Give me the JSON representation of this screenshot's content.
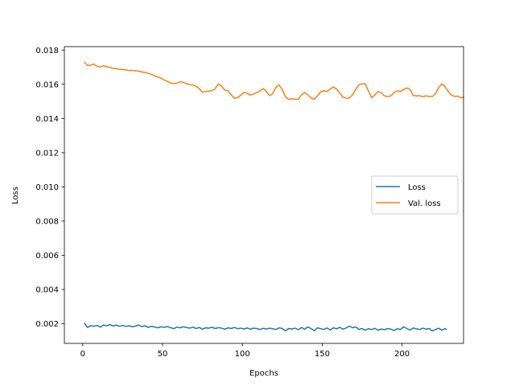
{
  "chart_data": {
    "type": "line",
    "title": "",
    "xlabel": "Epochs",
    "ylabel": "Loss",
    "xlim": [
      -11.5,
      238.5
    ],
    "ylim": [
      0.00085,
      0.0182
    ],
    "xticks": [
      0,
      50,
      100,
      150,
      200
    ],
    "xtick_labels": [
      "0",
      "50",
      "100",
      "150",
      "200"
    ],
    "yticks": [
      0.002,
      0.004,
      0.006,
      0.008,
      0.01,
      0.012,
      0.014,
      0.016,
      0.018
    ],
    "ytick_labels": [
      "0.002",
      "0.004",
      "0.006",
      "0.008",
      "0.010",
      "0.012",
      "0.014",
      "0.016",
      "0.018"
    ],
    "grid": false,
    "legend_position": "center-right",
    "series": [
      {
        "name": "Loss",
        "color": "#1f77b4",
        "points": [
          [
            1,
            0.00205
          ],
          [
            3,
            0.00178
          ],
          [
            5,
            0.00188
          ],
          [
            7,
            0.00185
          ],
          [
            9,
            0.0019
          ],
          [
            11,
            0.0018
          ],
          [
            13,
            0.00192
          ],
          [
            15,
            0.00188
          ],
          [
            17,
            0.00195
          ],
          [
            19,
            0.00186
          ],
          [
            21,
            0.00192
          ],
          [
            23,
            0.00185
          ],
          [
            25,
            0.0019
          ],
          [
            27,
            0.00184
          ],
          [
            29,
            0.00188
          ],
          [
            31,
            0.00182
          ],
          [
            33,
            0.00186
          ],
          [
            35,
            0.00192
          ],
          [
            37,
            0.00183
          ],
          [
            39,
            0.00188
          ],
          [
            41,
            0.00178
          ],
          [
            43,
            0.00185
          ],
          [
            45,
            0.00181
          ],
          [
            47,
            0.00176
          ],
          [
            49,
            0.00182
          ],
          [
            51,
            0.00179
          ],
          [
            53,
            0.00183
          ],
          [
            55,
            0.00177
          ],
          [
            57,
            0.00171
          ],
          [
            59,
            0.0018
          ],
          [
            61,
            0.00176
          ],
          [
            63,
            0.00182
          ],
          [
            65,
            0.00178
          ],
          [
            67,
            0.00174
          ],
          [
            69,
            0.0018
          ],
          [
            71,
            0.00172
          ],
          [
            73,
            0.00178
          ],
          [
            75,
            0.00168
          ],
          [
            77,
            0.00176
          ],
          [
            79,
            0.00174
          ],
          [
            81,
            0.00179
          ],
          [
            83,
            0.00172
          ],
          [
            85,
            0.00177
          ],
          [
            87,
            0.00174
          ],
          [
            89,
            0.00168
          ],
          [
            91,
            0.00176
          ],
          [
            93,
            0.00172
          ],
          [
            95,
            0.00178
          ],
          [
            97,
            0.00171
          ],
          [
            99,
            0.00174
          ],
          [
            101,
            0.00169
          ],
          [
            103,
            0.00175
          ],
          [
            105,
            0.00168
          ],
          [
            107,
            0.00174
          ],
          [
            109,
            0.00172
          ],
          [
            111,
            0.00166
          ],
          [
            113,
            0.00173
          ],
          [
            115,
            0.00169
          ],
          [
            117,
            0.00174
          ],
          [
            119,
            0.00171
          ],
          [
            121,
            0.00166
          ],
          [
            123,
            0.00176
          ],
          [
            125,
            0.00172
          ],
          [
            127,
            0.00158
          ],
          [
            129,
            0.00172
          ],
          [
            131,
            0.00169
          ],
          [
            133,
            0.00174
          ],
          [
            135,
            0.00165
          ],
          [
            137,
            0.00178
          ],
          [
            139,
            0.00168
          ],
          [
            141,
            0.00181
          ],
          [
            143,
            0.00172
          ],
          [
            145,
            0.00159
          ],
          [
            147,
            0.00176
          ],
          [
            149,
            0.00171
          ],
          [
            151,
            0.00166
          ],
          [
            153,
            0.00175
          ],
          [
            155,
            0.00163
          ],
          [
            157,
            0.00176
          ],
          [
            159,
            0.0017
          ],
          [
            161,
            0.00179
          ],
          [
            163,
            0.00168
          ],
          [
            165,
            0.00175
          ],
          [
            167,
            0.00186
          ],
          [
            169,
            0.00176
          ],
          [
            171,
            0.00181
          ],
          [
            173,
            0.00166
          ],
          [
            175,
            0.00172
          ],
          [
            177,
            0.00162
          ],
          [
            179,
            0.00171
          ],
          [
            181,
            0.00166
          ],
          [
            183,
            0.00173
          ],
          [
            185,
            0.00162
          ],
          [
            187,
            0.00169
          ],
          [
            189,
            0.00165
          ],
          [
            191,
            0.00172
          ],
          [
            193,
            0.00168
          ],
          [
            195,
            0.0016
          ],
          [
            197,
            0.00171
          ],
          [
            199,
            0.00166
          ],
          [
            201,
            0.00182
          ],
          [
            203,
            0.00172
          ],
          [
            205,
            0.00163
          ],
          [
            207,
            0.00175
          ],
          [
            209,
            0.0017
          ],
          [
            211,
            0.00166
          ],
          [
            213,
            0.00174
          ],
          [
            215,
            0.00168
          ],
          [
            217,
            0.00172
          ],
          [
            219,
            0.00158
          ],
          [
            221,
            0.00166
          ],
          [
            223,
            0.00174
          ],
          [
            225,
            0.00162
          ],
          [
            227,
            0.00172
          ],
          [
            228,
            0.00164
          ]
        ]
      },
      {
        "name": "Val. loss",
        "color": "#ff7f0e",
        "points": [
          [
            1,
            0.0173
          ],
          [
            3,
            0.0171
          ],
          [
            5,
            0.01712
          ],
          [
            7,
            0.01718
          ],
          [
            9,
            0.01705
          ],
          [
            11,
            0.01702
          ],
          [
            13,
            0.01708
          ],
          [
            15,
            0.01703
          ],
          [
            17,
            0.01698
          ],
          [
            19,
            0.01693
          ],
          [
            21,
            0.01692
          ],
          [
            23,
            0.01688
          ],
          [
            25,
            0.01686
          ],
          [
            27,
            0.01684
          ],
          [
            29,
            0.01681
          ],
          [
            31,
            0.01681
          ],
          [
            33,
            0.01679
          ],
          [
            35,
            0.01677
          ],
          [
            37,
            0.01672
          ],
          [
            39,
            0.01669
          ],
          [
            41,
            0.01664
          ],
          [
            43,
            0.01658
          ],
          [
            45,
            0.01649
          ],
          [
            47,
            0.01643
          ],
          [
            49,
            0.01636
          ],
          [
            51,
            0.01625
          ],
          [
            53,
            0.01617
          ],
          [
            55,
            0.01608
          ],
          [
            57,
            0.01604
          ],
          [
            59,
            0.01606
          ],
          [
            61,
            0.01615
          ],
          [
            63,
            0.01612
          ],
          [
            65,
            0.01603
          ],
          [
            67,
            0.01598
          ],
          [
            69,
            0.01596
          ],
          [
            71,
            0.01588
          ],
          [
            73,
            0.01575
          ],
          [
            75,
            0.01553
          ],
          [
            77,
            0.01558
          ],
          [
            79,
            0.0156
          ],
          [
            81,
            0.01562
          ],
          [
            83,
            0.01575
          ],
          [
            85,
            0.01602
          ],
          [
            87,
            0.01588
          ],
          [
            89,
            0.01566
          ],
          [
            91,
            0.01562
          ],
          [
            93,
            0.01538
          ],
          [
            95,
            0.01518
          ],
          [
            97,
            0.01522
          ],
          [
            99,
            0.01536
          ],
          [
            101,
            0.01552
          ],
          [
            103,
            0.01548
          ],
          [
            105,
            0.01537
          ],
          [
            107,
            0.01542
          ],
          [
            109,
            0.01552
          ],
          [
            111,
            0.01561
          ],
          [
            113,
            0.01575
          ],
          [
            115,
            0.01558
          ],
          [
            117,
            0.01533
          ],
          [
            119,
            0.01545
          ],
          [
            121,
            0.01582
          ],
          [
            123,
            0.01596
          ],
          [
            125,
            0.0157
          ],
          [
            127,
            0.01526
          ],
          [
            129,
            0.01512
          ],
          [
            131,
            0.01515
          ],
          [
            133,
            0.01513
          ],
          [
            135,
            0.01512
          ],
          [
            137,
            0.01537
          ],
          [
            139,
            0.01552
          ],
          [
            141,
            0.01538
          ],
          [
            143,
            0.01519
          ],
          [
            145,
            0.01513
          ],
          [
            147,
            0.01531
          ],
          [
            149,
            0.01555
          ],
          [
            151,
            0.01562
          ],
          [
            153,
            0.01558
          ],
          [
            155,
            0.01572
          ],
          [
            157,
            0.01584
          ],
          [
            159,
            0.01572
          ],
          [
            161,
            0.01548
          ],
          [
            163,
            0.01525
          ],
          [
            165,
            0.01518
          ],
          [
            167,
            0.0152
          ],
          [
            169,
            0.01538
          ],
          [
            171,
            0.01571
          ],
          [
            173,
            0.01598
          ],
          [
            175,
            0.01602
          ],
          [
            177,
            0.01602
          ],
          [
            179,
            0.0156
          ],
          [
            181,
            0.01522
          ],
          [
            183,
            0.01538
          ],
          [
            185,
            0.01558
          ],
          [
            187,
            0.0155
          ],
          [
            189,
            0.01532
          ],
          [
            191,
            0.01528
          ],
          [
            193,
            0.01532
          ],
          [
            195,
            0.01552
          ],
          [
            197,
            0.01562
          ],
          [
            199,
            0.01558
          ],
          [
            201,
            0.0157
          ],
          [
            203,
            0.01578
          ],
          [
            205,
            0.0157
          ],
          [
            207,
            0.01535
          ],
          [
            209,
            0.01532
          ],
          [
            211,
            0.01533
          ],
          [
            213,
            0.01528
          ],
          [
            215,
            0.01532
          ],
          [
            217,
            0.01529
          ],
          [
            219,
            0.01528
          ],
          [
            221,
            0.01545
          ],
          [
            223,
            0.01582
          ],
          [
            225,
            0.01602
          ],
          [
            227,
            0.01585
          ],
          [
            229,
            0.01557
          ],
          [
            231,
            0.01536
          ],
          [
            233,
            0.01529
          ],
          [
            235,
            0.01531
          ],
          [
            237,
            0.0152
          ],
          [
            239,
            0.01525
          ]
        ]
      }
    ]
  }
}
